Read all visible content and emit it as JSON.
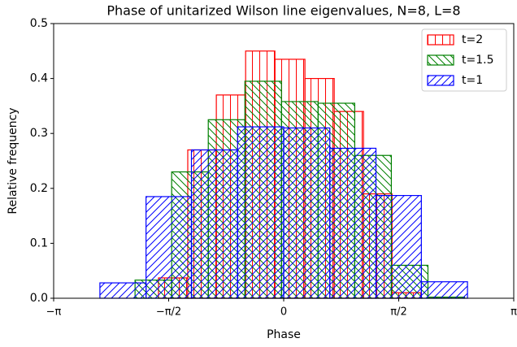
{
  "chart_data": {
    "type": "histogram",
    "title": "Phase of unitarized Wilson line eigenvalues, N=8, L=8",
    "x_label": "Phase",
    "y_label": "Relative frequency",
    "series": [
      {
        "name": "t=2",
        "color": "#ff0000",
        "hatch": "|",
        "bins": [
          -1.71,
          -1.31,
          -0.92,
          -0.52,
          -0.12,
          0.29,
          0.69,
          1.09,
          1.48,
          1.88
        ],
        "values": [
          0.037,
          0.27,
          0.37,
          0.45,
          0.435,
          0.4,
          0.34,
          0.19,
          0.01
        ]
      },
      {
        "name": "t=1.5",
        "color": "#008000",
        "hatch": "\\",
        "bins": [
          -2.03,
          -1.53,
          -1.03,
          -0.53,
          -0.03,
          0.47,
          0.97,
          1.47,
          1.97,
          2.47
        ],
        "values": [
          0.033,
          0.23,
          0.325,
          0.395,
          0.358,
          0.355,
          0.26,
          0.06,
          0.002
        ]
      },
      {
        "name": "t=1",
        "color": "#0000ff",
        "hatch": "/",
        "bins": [
          -2.51,
          -1.88,
          -1.26,
          -0.63,
          0,
          0.63,
          1.26,
          1.88,
          2.51
        ],
        "values": [
          0.028,
          0.185,
          0.27,
          0.312,
          0.31,
          0.273,
          0.187,
          0.03
        ]
      }
    ],
    "xlim": [
      -3.141592653589793,
      3.141592653589793
    ],
    "xticks": [
      {
        "value": -3.141592653589793,
        "label": "−π"
      },
      {
        "value": -1.5707963267948966,
        "label": "−π/2"
      },
      0,
      {
        "value": 1.5707963267948966,
        "label": "π/2"
      },
      {
        "value": 3.141592653589793,
        "label": "π"
      }
    ],
    "ylim": [
      0,
      0.5
    ],
    "yticks": [
      {
        "value": 0,
        "label": "0.0"
      },
      {
        "value": 0.1,
        "label": "0.1"
      },
      {
        "value": 0.2,
        "label": "0.2"
      },
      {
        "value": 0.3,
        "label": "0.3"
      },
      {
        "value": 0.4,
        "label": "0.4"
      },
      {
        "value": 0.5,
        "label": "0.5"
      }
    ],
    "legend": "upper right"
  }
}
